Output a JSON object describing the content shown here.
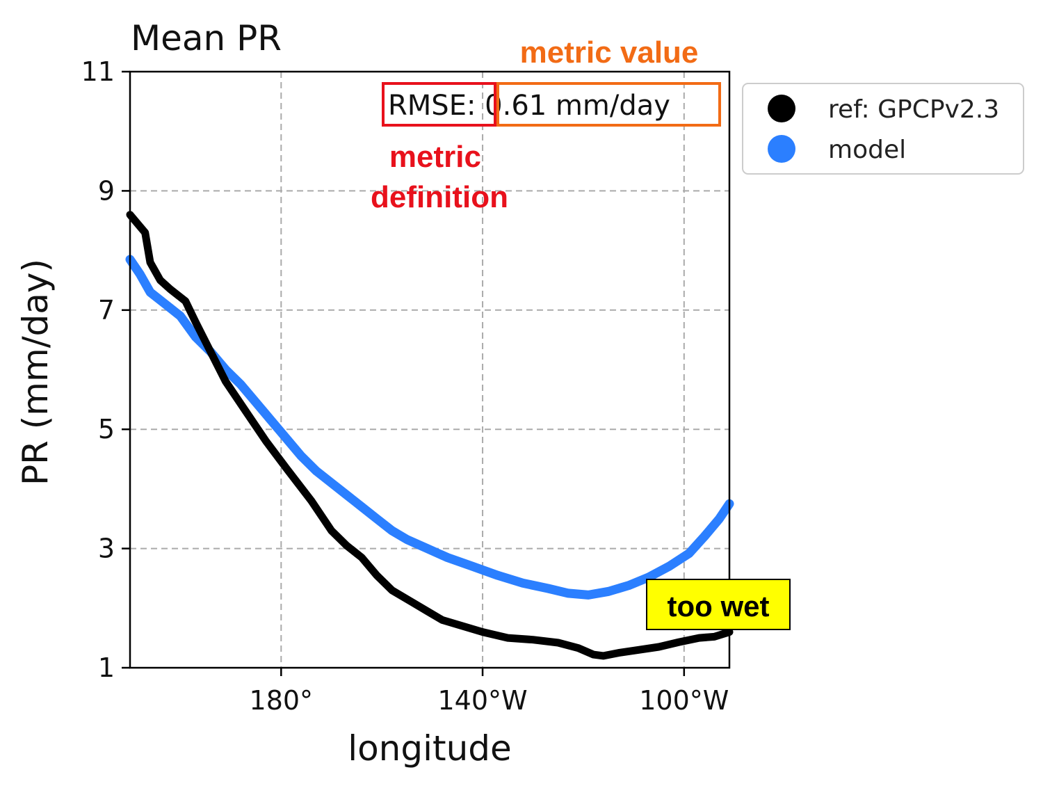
{
  "chart_data": {
    "type": "line",
    "title": "Mean PR",
    "xlabel": "longitude",
    "ylabel": "PR (mm/day)",
    "xlim": [
      -150,
      118
    ],
    "ylim": [
      1,
      11
    ],
    "x_ticks": [
      {
        "value": 180,
        "label": "180°"
      },
      {
        "value": 220,
        "label": "140°W"
      },
      {
        "value": 260,
        "label": "100°W"
      }
    ],
    "y_ticks": [
      1,
      3,
      5,
      7,
      9,
      11
    ],
    "grid": true,
    "legend_position": "outside-right",
    "series": [
      {
        "name": "ref: GPCPv2.3",
        "color": "#000000",
        "points": [
          [
            150,
            8.6
          ],
          [
            153,
            8.3
          ],
          [
            154,
            7.8
          ],
          [
            156,
            7.5
          ],
          [
            158,
            7.35
          ],
          [
            161,
            7.15
          ],
          [
            163,
            6.8
          ],
          [
            166,
            6.3
          ],
          [
            169,
            5.8
          ],
          [
            173,
            5.3
          ],
          [
            177,
            4.8
          ],
          [
            181,
            4.35
          ],
          [
            186,
            3.8
          ],
          [
            190,
            3.3
          ],
          [
            193,
            3.05
          ],
          [
            196,
            2.85
          ],
          [
            199,
            2.55
          ],
          [
            202,
            2.3
          ],
          [
            206,
            2.1
          ],
          [
            209,
            1.95
          ],
          [
            212,
            1.8
          ],
          [
            216,
            1.7
          ],
          [
            220,
            1.6
          ],
          [
            225,
            1.5
          ],
          [
            230,
            1.47
          ],
          [
            235,
            1.42
          ],
          [
            239,
            1.33
          ],
          [
            242,
            1.22
          ],
          [
            244,
            1.2
          ],
          [
            247,
            1.25
          ],
          [
            251,
            1.3
          ],
          [
            255,
            1.35
          ],
          [
            259,
            1.43
          ],
          [
            263,
            1.5
          ],
          [
            266,
            1.52
          ],
          [
            269,
            1.6
          ]
        ]
      },
      {
        "name": "model",
        "color": "#2b7fff",
        "points": [
          [
            150,
            7.85
          ],
          [
            152,
            7.6
          ],
          [
            154,
            7.3
          ],
          [
            157,
            7.1
          ],
          [
            160,
            6.9
          ],
          [
            163,
            6.55
          ],
          [
            166,
            6.3
          ],
          [
            169,
            6.0
          ],
          [
            172,
            5.75
          ],
          [
            175,
            5.45
          ],
          [
            178,
            5.15
          ],
          [
            181,
            4.85
          ],
          [
            184,
            4.55
          ],
          [
            187,
            4.3
          ],
          [
            190,
            4.1
          ],
          [
            193,
            3.9
          ],
          [
            196,
            3.7
          ],
          [
            199,
            3.5
          ],
          [
            202,
            3.3
          ],
          [
            205,
            3.15
          ],
          [
            209,
            3.0
          ],
          [
            213,
            2.85
          ],
          [
            218,
            2.7
          ],
          [
            223,
            2.55
          ],
          [
            228,
            2.42
          ],
          [
            233,
            2.33
          ],
          [
            237,
            2.25
          ],
          [
            241,
            2.22
          ],
          [
            245,
            2.28
          ],
          [
            249,
            2.38
          ],
          [
            253,
            2.52
          ],
          [
            257,
            2.7
          ],
          [
            261,
            2.92
          ],
          [
            264,
            3.2
          ],
          [
            267,
            3.5
          ],
          [
            269,
            3.75
          ]
        ]
      }
    ],
    "annotations": {
      "metric_text": "RMSE: 0.61 mm/day",
      "metric_definition_label": "metric definition",
      "metric_value_label": "metric value",
      "callout": "too wet"
    }
  },
  "colors": {
    "metric_definition": "#e8111c",
    "metric_value": "#f26b15",
    "callout_bg": "#ffff00"
  }
}
